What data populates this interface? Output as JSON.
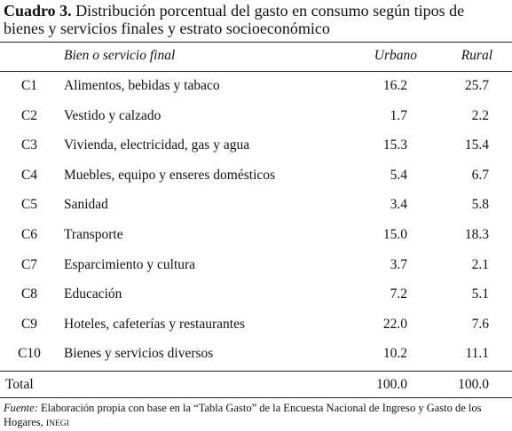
{
  "title": {
    "label": "Cuadro 3.",
    "text": "Distribución porcentual del gasto en consumo según tipos de bienes y servicios finales y estrato socioeconómico"
  },
  "table": {
    "headers": [
      "Bien o servicio final",
      "Urbano",
      "Rural"
    ],
    "rows": [
      [
        "C1",
        "Alimentos, bebidas y tabaco",
        "16.2",
        "25.7"
      ],
      [
        "C2",
        "Vestido y calzado",
        "1.7",
        "2.2"
      ],
      [
        "C3",
        "Vivienda, electricidad, gas y agua",
        "15.3",
        "15.4"
      ],
      [
        "C4",
        "Muebles, equipo y enseres domésticos",
        "5.4",
        "6.7"
      ],
      [
        "C5",
        "Sanidad",
        "3.4",
        "5.8"
      ],
      [
        "C6",
        "Transporte",
        "15.0",
        "18.3"
      ],
      [
        "C7",
        "Esparcimiento y cultura",
        "3.7",
        "2.1"
      ],
      [
        "C8",
        "Educación",
        "7.2",
        "5.1"
      ],
      [
        "C9",
        "Hoteles, cafeterías y restaurantes",
        "22.0",
        "7.6"
      ],
      [
        "C10",
        "Bienes y servicios diversos",
        "10.2",
        "11.1"
      ]
    ],
    "total": [
      "Total",
      "100.0",
      "100.0"
    ]
  },
  "source": {
    "label": "Fuente:",
    "text": "Elaboración propia con base en la “Tabla Gasto” de la Encuesta Nacional de Ingreso y Gasto de los Hogares,",
    "org": "INEGI"
  }
}
